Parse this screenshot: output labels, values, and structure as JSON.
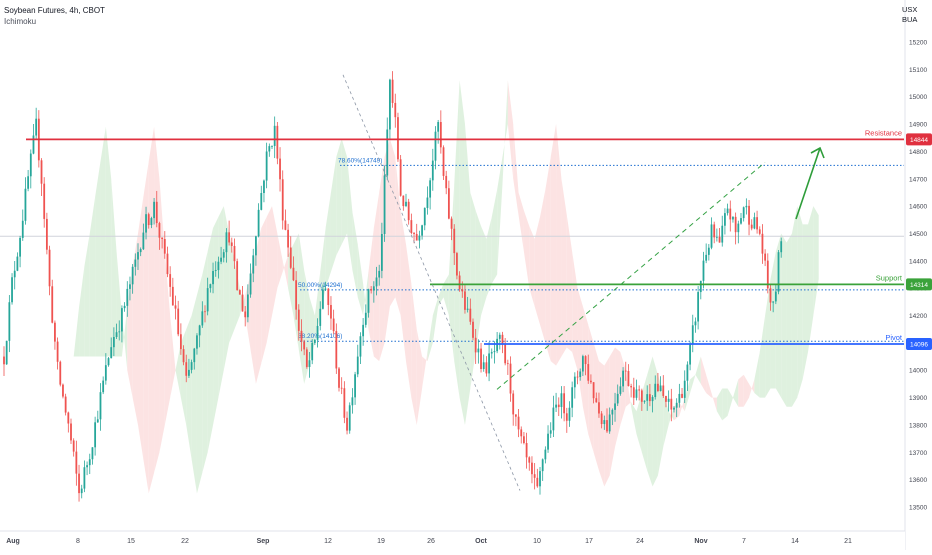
{
  "header": {
    "title": "Soybean Futures, 4h, CBOT",
    "indicator": "Ichimoku",
    "currency": "USX",
    "unit": "BUA"
  },
  "colors": {
    "bull": "#26a69a",
    "bear": "#ef5350",
    "resistance": "#e0303f",
    "support": "#3aa23a",
    "pivot": "#2962ff",
    "fib": "#1e6fd0",
    "cloud_bull": "#d9efd9",
    "cloud_bear": "#fcdede",
    "arrow": "#2e9d3a"
  },
  "chart_data": {
    "type": "candlestick",
    "instrument": "Soybean Futures",
    "timeframe": "4h",
    "exchange": "CBOT",
    "ylim": [
      13450,
      15280
    ],
    "y_ticks": [
      13500,
      13600,
      13700,
      13800,
      13900,
      14000,
      14100,
      14200,
      14300,
      14400,
      14500,
      14600,
      14700,
      14800,
      14900,
      15000,
      15100,
      15200
    ],
    "x_ticks": [
      "Aug",
      "8",
      "15",
      "22",
      "Sep",
      "12",
      "19",
      "26",
      "Oct",
      "10",
      "17",
      "24",
      "Nov",
      "7",
      "14",
      "21"
    ],
    "levels": [
      {
        "label": "Resistance",
        "value": 14844,
        "tag": "14844"
      },
      {
        "label": "Support",
        "value": 14314,
        "tag": "14314"
      },
      {
        "label": "Pivot",
        "value": 14096,
        "tag": "14096"
      }
    ],
    "fib_levels": [
      {
        "label": "78.60%(14749)",
        "value": 14749
      },
      {
        "label": "50.00%(14294)",
        "value": 14294
      },
      {
        "label": "38.20%(14106)",
        "value": 14106
      }
    ],
    "last_price": 14490,
    "price_path": [
      [
        0,
        14050
      ],
      [
        3,
        14320
      ],
      [
        6,
        14500
      ],
      [
        9,
        14700
      ],
      [
        12,
        14890
      ],
      [
        14,
        14700
      ],
      [
        17,
        14300
      ],
      [
        20,
        14000
      ],
      [
        24,
        13800
      ],
      [
        28,
        13550
      ],
      [
        32,
        13700
      ],
      [
        36,
        13900
      ],
      [
        40,
        14100
      ],
      [
        44,
        14200
      ],
      [
        48,
        14350
      ],
      [
        52,
        14520
      ],
      [
        56,
        14600
      ],
      [
        60,
        14400
      ],
      [
        64,
        14200
      ],
      [
        68,
        13950
      ],
      [
        72,
        14100
      ],
      [
        76,
        14300
      ],
      [
        80,
        14420
      ],
      [
        84,
        14500
      ],
      [
        87,
        14300
      ],
      [
        90,
        14200
      ],
      [
        94,
        14520
      ],
      [
        98,
        14780
      ],
      [
        101,
        14880
      ],
      [
        104,
        14580
      ],
      [
        107,
        14400
      ],
      [
        110,
        14150
      ],
      [
        113,
        14000
      ],
      [
        116,
        14100
      ],
      [
        119,
        14300
      ],
      [
        122,
        14200
      ],
      [
        125,
        13950
      ],
      [
        128,
        13800
      ],
      [
        131,
        14000
      ],
      [
        134,
        14200
      ],
      [
        137,
        14300
      ],
      [
        140,
        14350
      ],
      [
        142,
        14680
      ],
      [
        144,
        15060
      ],
      [
        146,
        14900
      ],
      [
        148,
        14650
      ],
      [
        151,
        14550
      ],
      [
        154,
        14480
      ],
      [
        157,
        14600
      ],
      [
        160,
        14780
      ],
      [
        162,
        14900
      ],
      [
        164,
        14700
      ],
      [
        167,
        14500
      ],
      [
        170,
        14300
      ],
      [
        173,
        14200
      ],
      [
        176,
        14100
      ],
      [
        179,
        14000
      ],
      [
        182,
        14050
      ],
      [
        185,
        14100
      ],
      [
        188,
        14000
      ],
      [
        191,
        13800
      ],
      [
        194,
        13700
      ],
      [
        197,
        13600
      ],
      [
        199,
        13550
      ],
      [
        201,
        13680
      ],
      [
        204,
        13800
      ],
      [
        207,
        13900
      ],
      [
        210,
        13850
      ],
      [
        213,
        13950
      ],
      [
        216,
        14050
      ],
      [
        219,
        13950
      ],
      [
        222,
        13850
      ],
      [
        225,
        13800
      ],
      [
        228,
        13900
      ],
      [
        231,
        14000
      ],
      [
        234,
        13950
      ],
      [
        237,
        13900
      ],
      [
        240,
        13900
      ],
      [
        243,
        13950
      ],
      [
        246,
        13900
      ],
      [
        249,
        13850
      ],
      [
        252,
        13900
      ],
      [
        255,
        14000
      ],
      [
        258,
        14200
      ],
      [
        261,
        14400
      ],
      [
        264,
        14500
      ],
      [
        267,
        14450
      ],
      [
        270,
        14600
      ],
      [
        273,
        14500
      ],
      [
        276,
        14600
      ],
      [
        279,
        14550
      ],
      [
        282,
        14500
      ],
      [
        285,
        14300
      ],
      [
        287,
        14220
      ],
      [
        290,
        14490
      ]
    ]
  }
}
